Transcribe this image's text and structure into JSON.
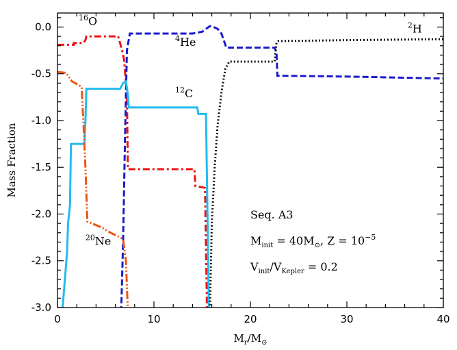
{
  "chart_data": {
    "type": "line",
    "xlabel": "M_r/M_⊙",
    "ylabel": "Mass Fraction",
    "xlim": [
      0,
      40
    ],
    "ylim": [
      -3.0,
      0.15
    ],
    "xticks": [
      0,
      10,
      20,
      30,
      40
    ],
    "yticks": [
      0.0,
      -0.5,
      -1.0,
      -1.5,
      -2.0,
      -2.5,
      -3.0
    ],
    "x_tick_labels": [
      "0",
      "10",
      "20",
      "30",
      "40"
    ],
    "y_tick_labels": [
      "0.0",
      "-0.5",
      "-1.0",
      "-1.5",
      "-2.0",
      "-2.5",
      "-3.0"
    ],
    "grid": false,
    "annotations": {
      "line1": "Seq. A3",
      "line2": {
        "m": "M",
        "m_sub": "init",
        "eq1": " = 40M",
        "sun": "⊙",
        "z": ", Z = 10",
        "z_exp": "−5"
      },
      "line3": {
        "v": "V",
        "v_sub": "init",
        "slash": "/V",
        "k_sub": "Kepler",
        "val": " = 0.2"
      }
    },
    "series": [
      {
        "name": "16O",
        "mass": "16",
        "element": "O",
        "color": "#ee1111",
        "dash": "10,4,3,4",
        "points": [
          [
            0,
            -0.19
          ],
          [
            1.7,
            -0.19
          ],
          [
            1.7,
            -0.17
          ],
          [
            2.7,
            -0.17
          ],
          [
            2.9,
            -0.14
          ],
          [
            3.0,
            -0.1
          ],
          [
            6.3,
            -0.1
          ],
          [
            6.7,
            -0.25
          ],
          [
            6.9,
            -0.35
          ],
          [
            7.2,
            -0.72
          ],
          [
            7.3,
            -1.52
          ],
          [
            14.2,
            -1.52
          ],
          [
            14.3,
            -1.7
          ],
          [
            15.3,
            -1.72
          ],
          [
            15.5,
            -3.05
          ]
        ]
      },
      {
        "name": "4He",
        "mass": "4",
        "element": "He",
        "color": "#1a1acc",
        "dash": "9,4",
        "points": [
          [
            6.6,
            -3.05
          ],
          [
            6.8,
            -2.3
          ],
          [
            7.0,
            -1.2
          ],
          [
            7.2,
            -0.25
          ],
          [
            7.5,
            -0.07
          ],
          [
            14.0,
            -0.07
          ],
          [
            14.5,
            -0.06
          ],
          [
            15.0,
            -0.05
          ],
          [
            15.4,
            -0.02
          ],
          [
            15.8,
            0.01
          ],
          [
            16.2,
            0.0
          ],
          [
            16.6,
            -0.02
          ],
          [
            17.0,
            -0.07
          ],
          [
            17.5,
            -0.22
          ],
          [
            22.5,
            -0.22
          ],
          [
            22.7,
            -0.27
          ],
          [
            22.8,
            -0.52
          ],
          [
            30.0,
            -0.53
          ],
          [
            40.0,
            -0.55
          ]
        ]
      },
      {
        "name": "12C",
        "mass": "12",
        "element": "C",
        "color": "#22bbee",
        "dash": "",
        "points": [
          [
            0.5,
            -3.05
          ],
          [
            1.0,
            -2.4
          ],
          [
            1.1,
            -2.1
          ],
          [
            1.3,
            -1.9
          ],
          [
            1.4,
            -1.25
          ],
          [
            2.8,
            -1.25
          ],
          [
            2.9,
            -1.0
          ],
          [
            3.0,
            -0.66
          ],
          [
            6.5,
            -0.66
          ],
          [
            6.8,
            -0.6
          ],
          [
            7.1,
            -0.58
          ],
          [
            7.3,
            -0.72
          ],
          [
            7.4,
            -0.86
          ],
          [
            14.5,
            -0.86
          ],
          [
            14.6,
            -0.93
          ],
          [
            15.4,
            -0.93
          ],
          [
            15.7,
            -3.05
          ]
        ]
      },
      {
        "name": "20Ne",
        "mass": "20",
        "element": "Ne",
        "color": "#ee5511",
        "dash": "12,3,2,3,2,3",
        "points": [
          [
            0,
            -0.48
          ],
          [
            0.9,
            -0.49
          ],
          [
            1.5,
            -0.58
          ],
          [
            2.5,
            -0.64
          ],
          [
            2.7,
            -1.05
          ],
          [
            2.9,
            -1.5
          ],
          [
            3.1,
            -2.08
          ],
          [
            4.5,
            -2.14
          ],
          [
            5.5,
            -2.2
          ],
          [
            6.5,
            -2.25
          ],
          [
            6.8,
            -2.27
          ],
          [
            7.1,
            -2.5
          ],
          [
            7.3,
            -3.05
          ]
        ]
      },
      {
        "name": "2H",
        "mass": "2",
        "element": "H",
        "color": "#111111",
        "dash": "2,3",
        "points": [
          [
            15.8,
            -3.05
          ],
          [
            16.0,
            -2.1
          ],
          [
            16.3,
            -1.5
          ],
          [
            16.6,
            -1.05
          ],
          [
            17.0,
            -0.7
          ],
          [
            17.4,
            -0.45
          ],
          [
            17.8,
            -0.37
          ],
          [
            22.5,
            -0.37
          ],
          [
            22.7,
            -0.17
          ],
          [
            22.9,
            -0.15
          ],
          [
            30.0,
            -0.14
          ],
          [
            40.0,
            -0.13
          ]
        ]
      }
    ]
  }
}
